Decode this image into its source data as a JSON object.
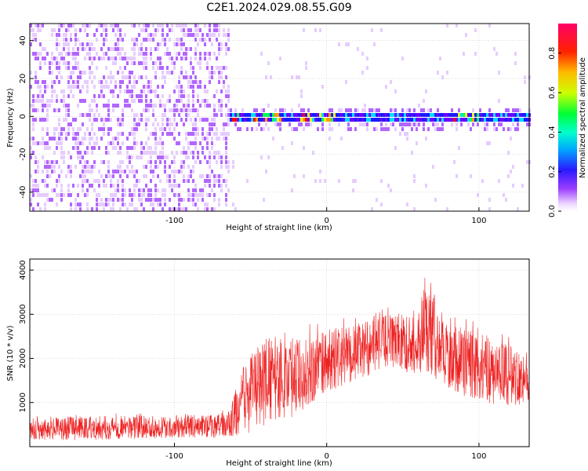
{
  "title": "C2E1.2024.029.08.55.G09",
  "colors": {
    "snr_line": "#ee2222",
    "spectrogram_palette": [
      "#ffffff",
      "#e6ccff",
      "#b266ff",
      "#6a00ff",
      "#1a1aff",
      "#00ddff",
      "#00ff55",
      "#e6ff00",
      "#ff9900",
      "#ff0000",
      "#ff0066"
    ]
  },
  "chart_data": [
    {
      "type": "heatmap",
      "xlabel": "Height of straight line (km)",
      "ylabel": "Frequency (Hz)",
      "xlim": [
        -195,
        133
      ],
      "ylim": [
        -50,
        49
      ],
      "xticks": [
        -100,
        0,
        100
      ],
      "yticks": [
        -40,
        -20,
        0,
        20,
        40
      ],
      "colorbar": {
        "label": "Normalized spectral amplitude",
        "range": [
          0.0,
          0.95
        ],
        "ticks": [
          "0.0",
          "0.2",
          "0.4",
          "0.6",
          "0.8"
        ]
      },
      "features": {
        "noise_region_x": [
          -195,
          -65
        ],
        "signal_center_hz": 0,
        "signal_start_x": -65,
        "peak_segments_x": [
          [
            -70,
            -30
          ],
          [
            -20,
            5
          ],
          [
            80,
            100
          ]
        ]
      }
    },
    {
      "type": "line",
      "xlabel": "Height of straight line (km)",
      "ylabel": "SNR (10 * v/v)",
      "xlim": [
        -195,
        133
      ],
      "ylim": [
        0,
        4250
      ],
      "xticks": [
        -100,
        0,
        100
      ],
      "yticks": [
        1000,
        2000,
        3000,
        4000
      ],
      "envelope": {
        "x": [
          -195,
          -150,
          -100,
          -65,
          -55,
          -40,
          -20,
          0,
          20,
          40,
          60,
          64,
          80,
          100,
          120,
          133
        ],
        "low": [
          150,
          150,
          200,
          200,
          250,
          500,
          700,
          1200,
          1500,
          1800,
          1600,
          1700,
          1300,
          1000,
          900,
          1000
        ],
        "high": [
          650,
          700,
          700,
          750,
          1800,
          2500,
          2500,
          2600,
          2800,
          3000,
          3000,
          3800,
          2800,
          2600,
          2300,
          2200
        ]
      }
    }
  ]
}
